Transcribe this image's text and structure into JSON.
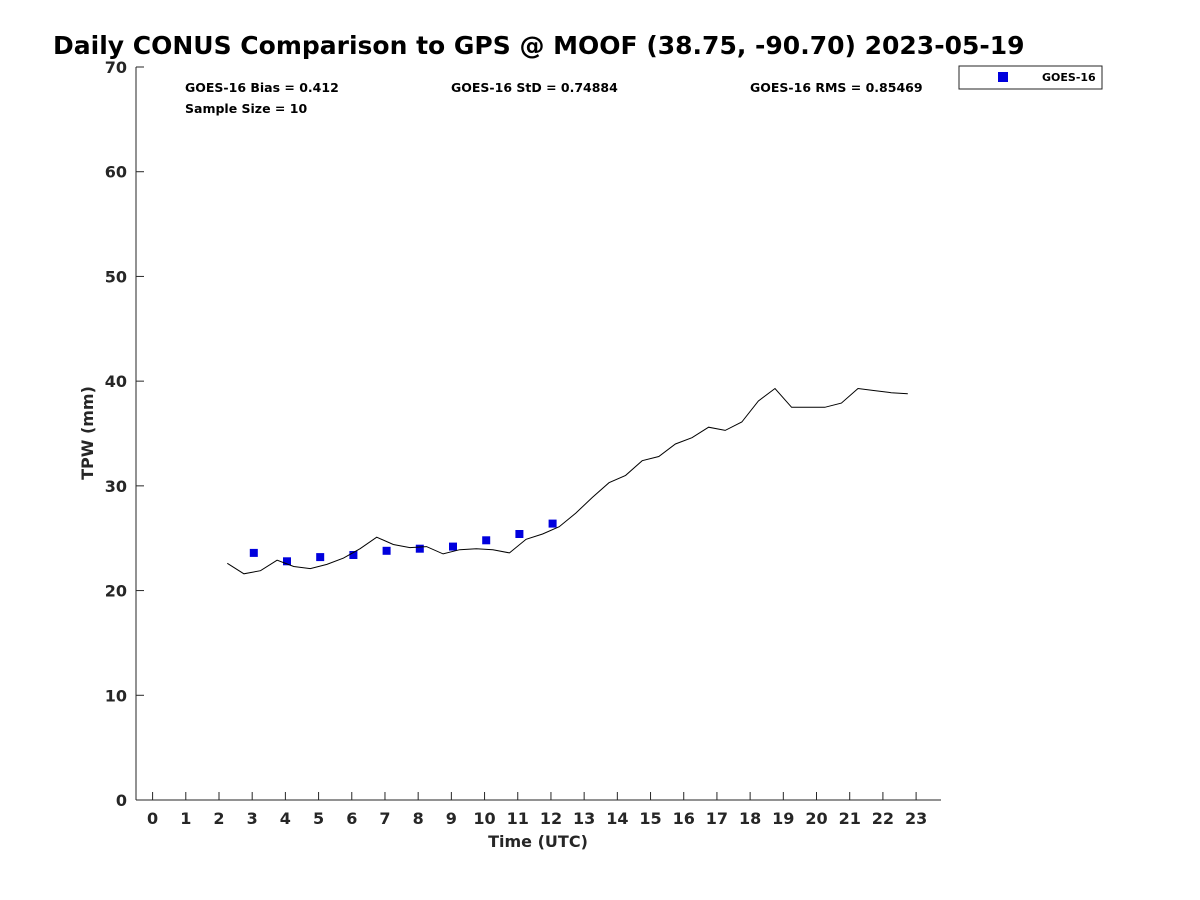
{
  "chart_data": {
    "type": "scatter",
    "title": "Daily CONUS Comparison to GPS @ MOOF (38.75, -90.70) 2023-05-19",
    "xlabel": "Time (UTC)",
    "ylabel": "TPW (mm)",
    "xlim": [
      -0.5,
      23.75
    ],
    "ylim": [
      0,
      70
    ],
    "x_ticks": [
      0,
      1,
      2,
      3,
      4,
      5,
      6,
      7,
      8,
      9,
      10,
      11,
      12,
      13,
      14,
      15,
      16,
      17,
      18,
      19,
      20,
      21,
      22,
      23
    ],
    "y_ticks": [
      0,
      10,
      20,
      30,
      40,
      50,
      60,
      70
    ],
    "grid": false,
    "legend_position": "top-right, outside plot",
    "stats": {
      "bias": "GOES-16 Bias = 0.412",
      "std": "GOES-16 StD = 0.74884",
      "rms": "GOES-16 RMS = 0.85469",
      "sample": "Sample Size = 10"
    },
    "series": [
      {
        "name": "GOES-16",
        "kind": "marker",
        "color": "#0000dd",
        "x": [
          3.05,
          4.05,
          5.05,
          6.05,
          7.05,
          8.05,
          9.05,
          10.05,
          11.05,
          12.05
        ],
        "y": [
          23.6,
          22.8,
          23.2,
          23.4,
          23.8,
          24.0,
          24.2,
          24.8,
          25.4,
          26.4
        ]
      },
      {
        "kind": "line",
        "color": "#000000",
        "x": [
          2.25,
          2.75,
          3.25,
          3.75,
          4.25,
          4.75,
          5.25,
          5.75,
          6.25,
          6.75,
          7.25,
          7.75,
          8.25,
          8.75,
          9.25,
          9.75,
          10.25,
          10.75,
          11.25,
          11.75,
          12.25,
          12.75,
          13.25,
          13.75,
          14.25,
          14.75,
          15.25,
          15.75,
          16.25,
          16.75,
          17.25,
          17.75,
          18.25,
          18.75,
          19.25,
          19.75,
          20.25,
          20.75,
          21.25,
          21.75,
          22.25,
          22.75
        ],
        "y": [
          22.6,
          21.6,
          21.9,
          22.9,
          22.3,
          22.1,
          22.5,
          23.1,
          24.0,
          25.1,
          24.4,
          24.1,
          24.2,
          23.5,
          23.9,
          24.0,
          23.9,
          23.6,
          24.9,
          25.4,
          26.1,
          27.4,
          28.9,
          30.3,
          31.0,
          32.4,
          32.8,
          34.0,
          34.6,
          35.6,
          35.3,
          36.1,
          38.1,
          39.3,
          37.5,
          37.5,
          37.5,
          37.9,
          39.3,
          39.1,
          38.9,
          38.8
        ]
      }
    ],
    "legend": [
      {
        "label": "GOES-16",
        "color": "#0000dd",
        "marker": "square"
      }
    ]
  }
}
